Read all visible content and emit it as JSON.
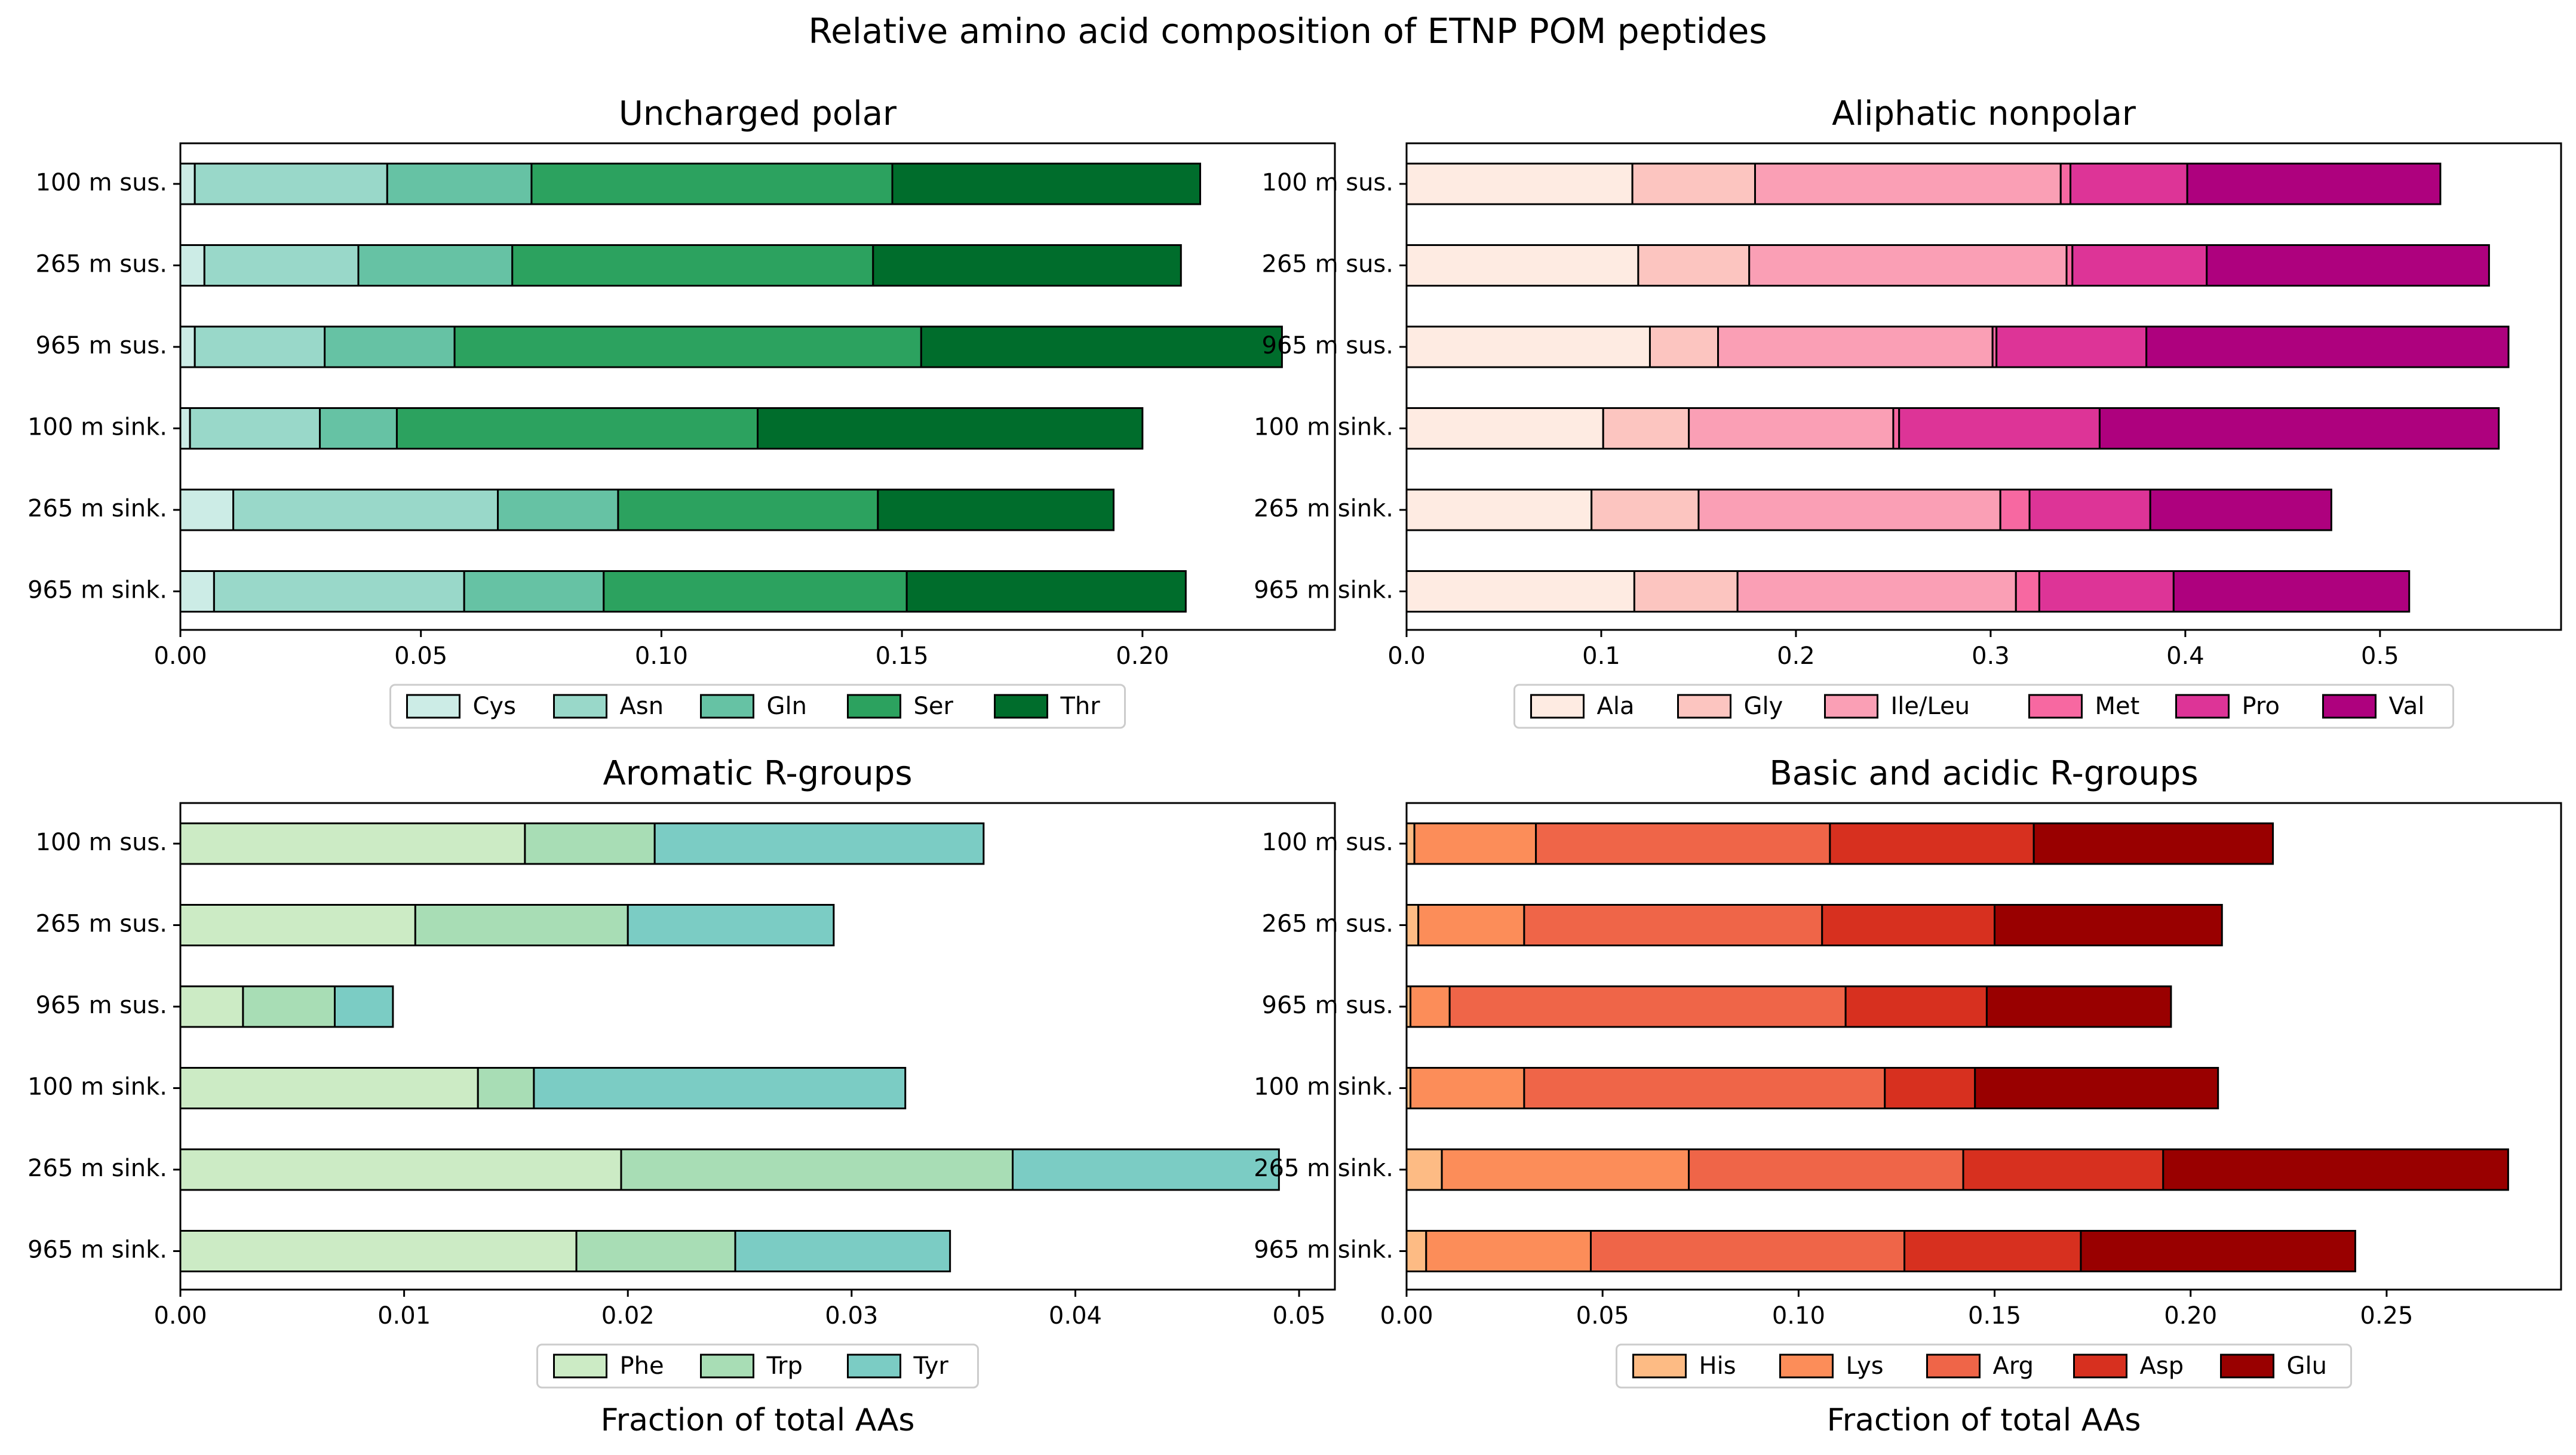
{
  "chart_data": {
    "suptitle": "Relative amino acid composition of ETNP POM peptides",
    "xlabel": "Fraction of total AAs",
    "categories": [
      "100 m sus.",
      "265 m sus.",
      "965 m sus.",
      "100 m sink.",
      "265 m sink.",
      "965 m sink."
    ],
    "panels": [
      {
        "type": "bar",
        "orientation": "horizontal",
        "stacked": true,
        "title": "Uncharged polar",
        "xlim": [
          0,
          0.24
        ],
        "xticks": [
          0,
          0.05,
          0.1,
          0.15,
          0.2
        ],
        "xtick_labels": [
          "0.00",
          "0.05",
          "0.10",
          "0.15",
          "0.20"
        ],
        "legend_placement": "bottom-center",
        "show_xlabel": false,
        "series": [
          {
            "name": "Cys",
            "color": "#ccece6",
            "values": [
              0.003,
              0.005,
              0.003,
              0.002,
              0.011,
              0.007
            ]
          },
          {
            "name": "Asn",
            "color": "#99d8c9",
            "values": [
              0.04,
              0.032,
              0.027,
              0.027,
              0.055,
              0.052
            ]
          },
          {
            "name": "Gln",
            "color": "#66c2a4",
            "values": [
              0.03,
              0.032,
              0.027,
              0.016,
              0.025,
              0.029
            ]
          },
          {
            "name": "Ser",
            "color": "#2ca25f",
            "values": [
              0.075,
              0.075,
              0.097,
              0.075,
              0.054,
              0.063
            ]
          },
          {
            "name": "Thr",
            "color": "#006d2c",
            "values": [
              0.064,
              0.064,
              0.075,
              0.08,
              0.049,
              0.058
            ]
          }
        ]
      },
      {
        "type": "bar",
        "orientation": "horizontal",
        "stacked": true,
        "title": "Aliphatic nonpolar",
        "xlim": [
          0,
          0.593
        ],
        "xticks": [
          0,
          0.1,
          0.2,
          0.3,
          0.4,
          0.5
        ],
        "xtick_labels": [
          "0.0",
          "0.1",
          "0.2",
          "0.3",
          "0.4",
          "0.5"
        ],
        "legend_placement": "bottom-center",
        "show_xlabel": false,
        "series": [
          {
            "name": "Ala",
            "color": "#feebe2",
            "values": [
              0.116,
              0.119,
              0.125,
              0.101,
              0.095,
              0.117
            ]
          },
          {
            "name": "Gly",
            "color": "#fcc5c0",
            "values": [
              0.063,
              0.057,
              0.035,
              0.044,
              0.055,
              0.053
            ]
          },
          {
            "name": "Ile/Leu",
            "color": "#fa9fb5",
            "values": [
              0.157,
              0.163,
              0.141,
              0.105,
              0.155,
              0.143
            ]
          },
          {
            "name": "Met",
            "color": "#f768a1",
            "values": [
              0.005,
              0.003,
              0.002,
              0.003,
              0.015,
              0.012
            ]
          },
          {
            "name": "Pro",
            "color": "#dd3497",
            "values": [
              0.06,
              0.069,
              0.077,
              0.103,
              0.062,
              0.069
            ]
          },
          {
            "name": "Val",
            "color": "#ae017e",
            "values": [
              0.13,
              0.145,
              0.186,
              0.205,
              0.093,
              0.121
            ]
          }
        ]
      },
      {
        "type": "bar",
        "orientation": "horizontal",
        "stacked": true,
        "title": "Aromatic R-groups",
        "xlim": [
          0,
          0.0516
        ],
        "xticks": [
          0,
          0.01,
          0.02,
          0.03,
          0.04,
          0.05
        ],
        "xtick_labels": [
          "0.00",
          "0.01",
          "0.02",
          "0.03",
          "0.04",
          "0.05"
        ],
        "legend_placement": "bottom-center",
        "show_xlabel": true,
        "series": [
          {
            "name": "Phe",
            "color": "#ccebc5",
            "values": [
              0.0154,
              0.0105,
              0.0028,
              0.0133,
              0.0197,
              0.0177
            ]
          },
          {
            "name": "Trp",
            "color": "#a8ddb5",
            "values": [
              0.0058,
              0.0095,
              0.0041,
              0.0025,
              0.0175,
              0.0071
            ]
          },
          {
            "name": "Tyr",
            "color": "#7bccc4",
            "values": [
              0.0147,
              0.0092,
              0.0026,
              0.0166,
              0.0119,
              0.0096
            ]
          }
        ]
      },
      {
        "type": "bar",
        "orientation": "horizontal",
        "stacked": true,
        "title": "Basic and acidic R-groups",
        "xlim": [
          0,
          0.2945
        ],
        "xticks": [
          0,
          0.05,
          0.1,
          0.15,
          0.2,
          0.25
        ],
        "xtick_labels": [
          "0.00",
          "0.05",
          "0.10",
          "0.15",
          "0.20",
          "0.25"
        ],
        "legend_placement": "bottom-center",
        "show_xlabel": true,
        "series": [
          {
            "name": "His",
            "color": "#fdbb84",
            "values": [
              0.002,
              0.003,
              0.001,
              0.001,
              0.009,
              0.005
            ]
          },
          {
            "name": "Lys",
            "color": "#fc8d59",
            "values": [
              0.031,
              0.027,
              0.01,
              0.029,
              0.063,
              0.042
            ]
          },
          {
            "name": "Arg",
            "color": "#ef6548",
            "values": [
              0.075,
              0.076,
              0.101,
              0.092,
              0.07,
              0.08
            ]
          },
          {
            "name": "Asp",
            "color": "#d7301f",
            "values": [
              0.052,
              0.044,
              0.036,
              0.023,
              0.051,
              0.045
            ]
          },
          {
            "name": "Glu",
            "color": "#990000",
            "values": [
              0.061,
              0.058,
              0.047,
              0.062,
              0.088,
              0.07
            ]
          }
        ]
      }
    ]
  }
}
